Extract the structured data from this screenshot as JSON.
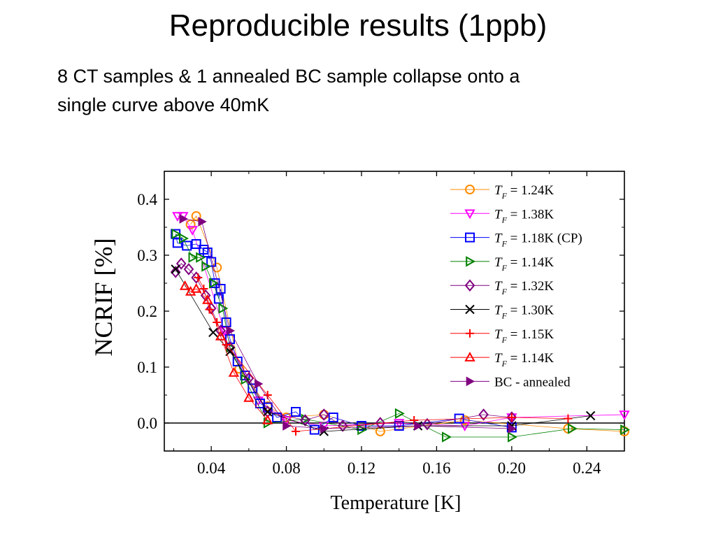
{
  "slide": {
    "title": "Reproducible results (1ppb)",
    "subtitle_lines": [
      "8 CT samples & 1 annealed BC sample collapse onto a",
      "single curve above 40mK"
    ]
  },
  "chart_data": {
    "type": "scatter",
    "xlabel": "Temperature [K]",
    "ylabel": "NCRIF [%]",
    "xlim": [
      0.015,
      0.26
    ],
    "ylim": [
      -0.05,
      0.45
    ],
    "xticks": [
      "0.04",
      "0.08",
      "0.12",
      "0.16",
      "0.20",
      "0.24"
    ],
    "yticks": [
      "0.0",
      "0.1",
      "0.2",
      "0.3",
      "0.4"
    ],
    "zero_line": 0.0,
    "grid": false,
    "legend_position": "top-right",
    "series": [
      {
        "name": "T_F = 1.24K",
        "legend_main": "T",
        "legend_sub": "F",
        "legend_rest": " = 1.24K",
        "color": "#ff8c00",
        "marker": "circle",
        "points": [
          [
            0.029,
            0.355
          ],
          [
            0.032,
            0.37
          ],
          [
            0.043,
            0.278
          ],
          [
            0.055,
            0.097
          ],
          [
            0.07,
            0.03
          ],
          [
            0.08,
            0.01
          ],
          [
            0.1,
            0.015
          ],
          [
            0.13,
            -0.015
          ],
          [
            0.175,
            0.005
          ],
          [
            0.23,
            -0.01
          ],
          [
            0.26,
            -0.015
          ]
        ]
      },
      {
        "name": "T_F = 1.38K",
        "legend_main": "T",
        "legend_sub": "F",
        "legend_rest": " = 1.38K",
        "color": "#ff00ff",
        "marker": "triangle-down",
        "points": [
          [
            0.022,
            0.37
          ],
          [
            0.025,
            0.37
          ],
          [
            0.03,
            0.345
          ],
          [
            0.047,
            0.165
          ],
          [
            0.065,
            0.04
          ],
          [
            0.08,
            0.005
          ],
          [
            0.1,
            -0.005
          ],
          [
            0.14,
            0.0
          ],
          [
            0.175,
            -0.005
          ],
          [
            0.2,
            0.01
          ],
          [
            0.26,
            0.015
          ]
        ]
      },
      {
        "name": "T_F = 1.18K (CP)",
        "legend_main": "T",
        "legend_sub": "F",
        "legend_rest": " = 1.18K (CP)",
        "color": "#0000ff",
        "marker": "square",
        "points": [
          [
            0.021,
            0.338
          ],
          [
            0.022,
            0.322
          ],
          [
            0.027,
            0.317
          ],
          [
            0.032,
            0.32
          ],
          [
            0.036,
            0.31
          ],
          [
            0.038,
            0.305
          ],
          [
            0.04,
            0.288
          ],
          [
            0.042,
            0.25
          ],
          [
            0.044,
            0.222
          ],
          [
            0.045,
            0.24
          ],
          [
            0.048,
            0.18
          ],
          [
            0.05,
            0.15
          ],
          [
            0.054,
            0.11
          ],
          [
            0.058,
            0.085
          ],
          [
            0.062,
            0.062
          ],
          [
            0.066,
            0.035
          ],
          [
            0.07,
            0.028
          ],
          [
            0.075,
            0.01
          ],
          [
            0.085,
            0.02
          ],
          [
            0.095,
            -0.012
          ],
          [
            0.105,
            0.01
          ],
          [
            0.12,
            -0.005
          ],
          [
            0.14,
            -0.005
          ],
          [
            0.172,
            0.008
          ],
          [
            0.2,
            -0.008
          ]
        ]
      },
      {
        "name": "T_F = 1.14K",
        "legend_main": "T",
        "legend_sub": "F",
        "legend_rest": " = 1.14K",
        "color": "#008000",
        "marker": "triangle-right",
        "points": [
          [
            0.021,
            0.338
          ],
          [
            0.025,
            0.33
          ],
          [
            0.03,
            0.296
          ],
          [
            0.034,
            0.296
          ],
          [
            0.037,
            0.28
          ],
          [
            0.041,
            0.25
          ],
          [
            0.046,
            0.205
          ],
          [
            0.05,
            0.135
          ],
          [
            0.058,
            0.078
          ],
          [
            0.07,
            0.0
          ],
          [
            0.09,
            0.007
          ],
          [
            0.12,
            -0.012
          ],
          [
            0.14,
            0.017
          ],
          [
            0.165,
            -0.025
          ],
          [
            0.2,
            -0.025
          ],
          [
            0.232,
            -0.01
          ],
          [
            0.26,
            -0.012
          ]
        ]
      },
      {
        "name": "T_F = 1.32K",
        "legend_main": "T",
        "legend_sub": "F",
        "legend_rest": " = 1.32K",
        "color": "#800080",
        "marker": "diamond",
        "points": [
          [
            0.021,
            0.27
          ],
          [
            0.024,
            0.285
          ],
          [
            0.028,
            0.275
          ],
          [
            0.032,
            0.26
          ],
          [
            0.037,
            0.228
          ],
          [
            0.04,
            0.205
          ],
          [
            0.045,
            0.165
          ],
          [
            0.05,
            0.135
          ],
          [
            0.06,
            0.08
          ],
          [
            0.07,
            0.02
          ],
          [
            0.09,
            0.005
          ],
          [
            0.1,
            0.015
          ],
          [
            0.11,
            -0.005
          ],
          [
            0.13,
            0.0
          ],
          [
            0.155,
            -0.002
          ],
          [
            0.185,
            0.015
          ],
          [
            0.2,
            0.01
          ]
        ]
      },
      {
        "name": "T_F = 1.30K",
        "legend_main": "T",
        "legend_sub": "F",
        "legend_rest": " = 1.30K",
        "color": "#000000",
        "marker": "x",
        "points": [
          [
            0.021,
            0.275
          ],
          [
            0.041,
            0.162
          ],
          [
            0.05,
            0.128
          ],
          [
            0.07,
            0.02
          ],
          [
            0.1,
            -0.015
          ],
          [
            0.15,
            -0.005
          ],
          [
            0.2,
            -0.005
          ],
          [
            0.242,
            0.013
          ]
        ]
      },
      {
        "name": "T_F = 1.15K",
        "legend_main": "T",
        "legend_sub": "F",
        "legend_rest": " = 1.15K",
        "color": "#ff0000",
        "marker": "plus",
        "points": [
          [
            0.033,
            0.26
          ],
          [
            0.036,
            0.24
          ],
          [
            0.039,
            0.203
          ],
          [
            0.043,
            0.18
          ],
          [
            0.048,
            0.14
          ],
          [
            0.07,
            0.05
          ],
          [
            0.085,
            -0.015
          ],
          [
            0.148,
            0.005
          ],
          [
            0.2,
            0.01
          ],
          [
            0.23,
            0.008
          ]
        ]
      },
      {
        "name": "T_F = 1.14K",
        "legend_main": "T",
        "legend_sub": "F",
        "legend_rest": " = 1.14K",
        "color": "#ff0000",
        "marker": "triangle-up",
        "points": [
          [
            0.026,
            0.245
          ],
          [
            0.029,
            0.235
          ],
          [
            0.032,
            0.24
          ],
          [
            0.038,
            0.22
          ],
          [
            0.045,
            0.155
          ],
          [
            0.052,
            0.09
          ],
          [
            0.06,
            0.045
          ],
          [
            0.07,
            0.005
          ]
        ]
      },
      {
        "name": "BC - annealed",
        "legend_main": "BC - annealed",
        "legend_sub": "",
        "legend_rest": "",
        "color": "#800080",
        "marker": "triangle-right-filled",
        "points": [
          [
            0.025,
            0.365
          ],
          [
            0.035,
            0.36
          ],
          [
            0.05,
            0.165
          ],
          [
            0.065,
            0.07
          ],
          [
            0.08,
            -0.005
          ],
          [
            0.1,
            -0.01
          ],
          [
            0.15,
            -0.005
          ],
          [
            0.2,
            -0.01
          ]
        ]
      }
    ]
  }
}
